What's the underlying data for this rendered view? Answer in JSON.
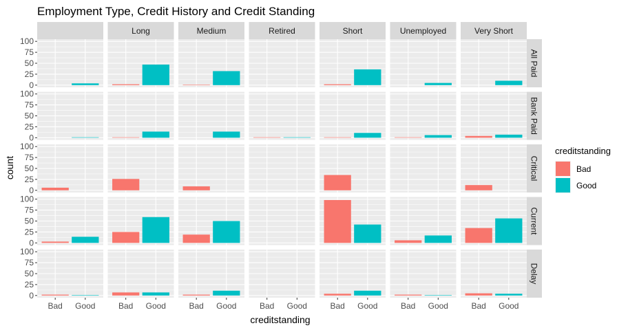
{
  "chart_data": {
    "type": "bar",
    "title": "Employment Type, Credit History and Credit Standing",
    "xlabel": "creditstanding",
    "ylabel": "count",
    "ylim": [
      0,
      100
    ],
    "yticks": [
      0,
      25,
      50,
      75,
      100
    ],
    "grid": true,
    "legend_position": "right",
    "legend_title": "creditstanding",
    "categories": [
      "Bad",
      "Good"
    ],
    "colors": {
      "Bad": "#F8766D",
      "Good": "#00BFC4"
    },
    "col_facets": [
      "",
      "Long",
      "Medium",
      "Retired",
      "Short",
      "Unemployed",
      "Very Short"
    ],
    "row_facets": [
      "All Paid",
      "Bank Paid",
      "Critical",
      "Current",
      "Delay"
    ],
    "panels": [
      [
        {
          "Bad": 0,
          "Good": 4
        },
        {
          "Bad": 2,
          "Good": 47
        },
        {
          "Bad": 1,
          "Good": 32
        },
        {
          "Bad": 0,
          "Good": 0
        },
        {
          "Bad": 2,
          "Good": 36
        },
        {
          "Bad": 0,
          "Good": 5
        },
        {
          "Bad": 0,
          "Good": 10
        }
      ],
      [
        {
          "Bad": 0,
          "Good": 1
        },
        {
          "Bad": 1,
          "Good": 14
        },
        {
          "Bad": 0,
          "Good": 14
        },
        {
          "Bad": 1,
          "Good": 1
        },
        {
          "Bad": 1,
          "Good": 11
        },
        {
          "Bad": 1,
          "Good": 6
        },
        {
          "Bad": 4,
          "Good": 7
        }
      ],
      [
        {
          "Bad": 6,
          "Good": 0
        },
        {
          "Bad": 26,
          "Good": 0
        },
        {
          "Bad": 9,
          "Good": 0
        },
        {
          "Bad": 0,
          "Good": 0
        },
        {
          "Bad": 35,
          "Good": 0
        },
        {
          "Bad": 0,
          "Good": 0
        },
        {
          "Bad": 12,
          "Good": 0
        }
      ],
      [
        {
          "Bad": 3,
          "Good": 14
        },
        {
          "Bad": 25,
          "Good": 59
        },
        {
          "Bad": 19,
          "Good": 50
        },
        {
          "Bad": 0,
          "Good": 0
        },
        {
          "Bad": 98,
          "Good": 42
        },
        {
          "Bad": 6,
          "Good": 17
        },
        {
          "Bad": 34,
          "Good": 56
        }
      ],
      [
        {
          "Bad": 2,
          "Good": 1
        },
        {
          "Bad": 7,
          "Good": 7
        },
        {
          "Bad": 2,
          "Good": 11
        },
        {
          "Bad": 0,
          "Good": 0
        },
        {
          "Bad": 4,
          "Good": 11
        },
        {
          "Bad": 2,
          "Good": 1
        },
        {
          "Bad": 5,
          "Good": 4
        }
      ]
    ]
  }
}
